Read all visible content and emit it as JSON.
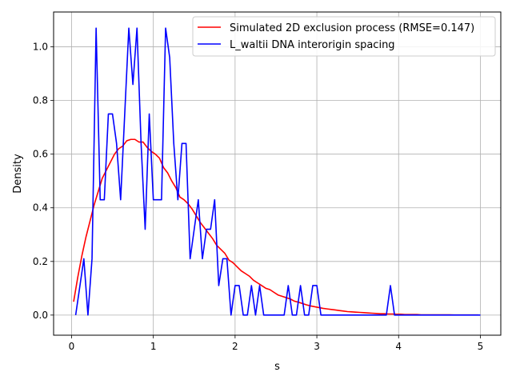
{
  "chart_data": {
    "type": "line",
    "xlabel": "s",
    "ylabel": "Density",
    "xlim": [
      -0.22,
      5.25
    ],
    "ylim": [
      -0.075,
      1.13
    ],
    "x_ticks": [
      0,
      1,
      2,
      3,
      4,
      5
    ],
    "x_tick_labels": [
      "0",
      "1",
      "2",
      "3",
      "4",
      "5"
    ],
    "y_ticks": [
      0.0,
      0.2,
      0.4,
      0.6,
      0.8,
      1.0
    ],
    "y_tick_labels": [
      "0.0",
      "0.2",
      "0.4",
      "0.6",
      "0.8",
      "1.0"
    ],
    "grid": true,
    "legend_position": "top-right",
    "series": [
      {
        "name": "Simulated 2D exclusion process (RMSE=0.147)",
        "color": "#ff0000",
        "x": [
          0.025,
          0.075,
          0.125,
          0.175,
          0.225,
          0.275,
          0.325,
          0.375,
          0.425,
          0.475,
          0.525,
          0.575,
          0.625,
          0.675,
          0.725,
          0.775,
          0.825,
          0.875,
          0.925,
          0.975,
          1.025,
          1.075,
          1.125,
          1.175,
          1.225,
          1.275,
          1.325,
          1.375,
          1.425,
          1.475,
          1.525,
          1.575,
          1.625,
          1.675,
          1.725,
          1.775,
          1.825,
          1.875,
          1.925,
          1.975,
          2.025,
          2.075,
          2.125,
          2.175,
          2.225,
          2.275,
          2.325,
          2.375,
          2.425,
          2.475,
          2.525,
          2.575,
          2.625,
          2.675,
          2.725,
          2.775,
          2.825,
          2.875,
          2.925,
          2.975,
          3.025,
          3.075,
          3.125,
          3.175,
          3.225,
          3.275,
          3.325,
          3.375,
          3.425,
          3.475,
          3.525,
          3.575,
          3.625,
          3.675,
          3.725,
          3.775,
          3.825,
          3.875,
          3.925,
          3.975,
          4.025,
          4.075,
          4.125,
          4.175,
          4.225,
          4.275,
          4.325,
          4.375,
          4.425,
          4.475,
          4.525,
          4.575,
          4.625,
          4.675,
          4.725,
          4.775,
          4.825,
          4.875,
          4.925,
          4.975
        ],
        "y": [
          0.05,
          0.14,
          0.22,
          0.29,
          0.35,
          0.41,
          0.46,
          0.51,
          0.54,
          0.57,
          0.6,
          0.62,
          0.63,
          0.65,
          0.655,
          0.655,
          0.645,
          0.645,
          0.625,
          0.61,
          0.6,
          0.585,
          0.55,
          0.53,
          0.5,
          0.475,
          0.44,
          0.43,
          0.415,
          0.395,
          0.37,
          0.345,
          0.325,
          0.305,
          0.285,
          0.26,
          0.245,
          0.23,
          0.205,
          0.195,
          0.18,
          0.165,
          0.155,
          0.145,
          0.13,
          0.12,
          0.11,
          0.1,
          0.095,
          0.085,
          0.075,
          0.07,
          0.065,
          0.06,
          0.052,
          0.048,
          0.043,
          0.038,
          0.034,
          0.031,
          0.028,
          0.025,
          0.023,
          0.021,
          0.019,
          0.017,
          0.015,
          0.013,
          0.012,
          0.011,
          0.01,
          0.009,
          0.008,
          0.007,
          0.006,
          0.005,
          0.005,
          0.004,
          0.004,
          0.003,
          0.003,
          0.002,
          0.002,
          0.002,
          0.002,
          0.001,
          0.001,
          0.001,
          0.001,
          0.001,
          0.001,
          0.001,
          0.001,
          0.0005,
          0.0005,
          0.0005,
          0.0005,
          0.0005,
          0.0005,
          0.0005
        ]
      },
      {
        "name": "L_waltii DNA interorigin spacing",
        "color": "#0000ff",
        "x": [
          0.05,
          0.15,
          0.2,
          0.25,
          0.3,
          0.35,
          0.4,
          0.45,
          0.5,
          0.55,
          0.6,
          0.65,
          0.7,
          0.75,
          0.8,
          0.85,
          0.9,
          0.95,
          1.0,
          1.05,
          1.1,
          1.15,
          1.2,
          1.25,
          1.3,
          1.35,
          1.4,
          1.45,
          1.5,
          1.55,
          1.6,
          1.65,
          1.7,
          1.75,
          1.8,
          1.85,
          1.9,
          1.95,
          2.0,
          2.05,
          2.1,
          2.15,
          2.2,
          2.25,
          2.3,
          2.35,
          2.4,
          2.45,
          2.5,
          2.55,
          2.6,
          2.65,
          2.7,
          2.75,
          2.8,
          2.85,
          2.9,
          2.95,
          3.0,
          3.05,
          3.1,
          3.15,
          3.2,
          3.25,
          3.3,
          3.35,
          3.4,
          3.45,
          3.5,
          3.55,
          3.6,
          3.65,
          3.7,
          3.75,
          3.8,
          3.85,
          3.9,
          3.95,
          4.0,
          4.5,
          5.0
        ],
        "y": [
          0.0,
          0.21,
          0.0,
          0.21,
          1.07,
          0.43,
          0.43,
          0.75,
          0.75,
          0.64,
          0.43,
          0.75,
          1.07,
          0.86,
          1.07,
          0.64,
          0.32,
          0.75,
          0.43,
          0.43,
          0.43,
          1.07,
          0.96,
          0.64,
          0.43,
          0.64,
          0.64,
          0.21,
          0.32,
          0.43,
          0.21,
          0.32,
          0.32,
          0.43,
          0.11,
          0.21,
          0.21,
          0.0,
          0.11,
          0.11,
          0.0,
          0.0,
          0.11,
          0.0,
          0.11,
          0.0,
          0.0,
          0.0,
          0.0,
          0.0,
          0.0,
          0.11,
          0.0,
          0.0,
          0.11,
          0.0,
          0.0,
          0.11,
          0.11,
          0.0,
          0.0,
          0.0,
          0.0,
          0.0,
          0.0,
          0.0,
          0.0,
          0.0,
          0.0,
          0.0,
          0.0,
          0.0,
          0.0,
          0.0,
          0.0,
          0.0,
          0.11,
          0.0,
          0.0,
          0.0,
          0.0
        ]
      }
    ]
  }
}
